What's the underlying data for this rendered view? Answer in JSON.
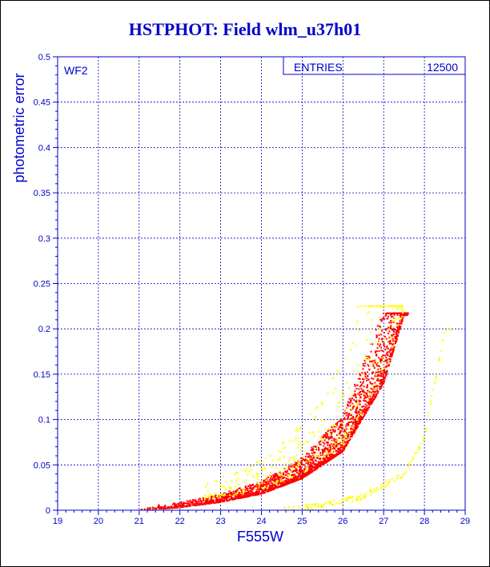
{
  "colors": {
    "axis": "#0000cc",
    "title": "#0000cc",
    "primary_points": "#ff0000",
    "secondary_points": "#ffff00"
  },
  "chart_data": {
    "type": "scatter",
    "title": "HSTPHOT: Field wlm_u37h01",
    "xlabel": "F555W",
    "ylabel": "photometric error",
    "panel_label": "WF2",
    "stats_label": "ENTRIES",
    "stats_value": "12500",
    "xlim": [
      19,
      29
    ],
    "ylim": [
      0,
      0.5
    ],
    "x_ticks": [
      "19",
      "20",
      "21",
      "22",
      "23",
      "24",
      "25",
      "26",
      "27",
      "28",
      "29"
    ],
    "y_ticks": [
      "0",
      "0.05",
      "0.1",
      "0.15",
      "0.2",
      "0.25",
      "0.3",
      "0.35",
      "0.4",
      "0.45",
      "0.5"
    ],
    "grid": true,
    "series": [
      {
        "color": "red",
        "x_range": [
          21.0,
          27.6
        ],
        "error_curve_ref": [
          [
            21,
            0.0
          ],
          [
            22,
            0.003
          ],
          [
            23,
            0.009
          ],
          [
            24,
            0.018
          ],
          [
            25,
            0.035
          ],
          [
            26,
            0.065
          ],
          [
            27,
            0.14
          ],
          [
            27.5,
            0.215
          ]
        ]
      },
      {
        "color": "yellow",
        "x_range": [
          22.5,
          28.7
        ],
        "error_curve_ref": [
          [
            24.5,
            0.0
          ],
          [
            25.5,
            0.005
          ],
          [
            26.5,
            0.015
          ],
          [
            27.5,
            0.04
          ],
          [
            28.0,
            0.08
          ],
          [
            28.5,
            0.2
          ]
        ]
      }
    ]
  }
}
